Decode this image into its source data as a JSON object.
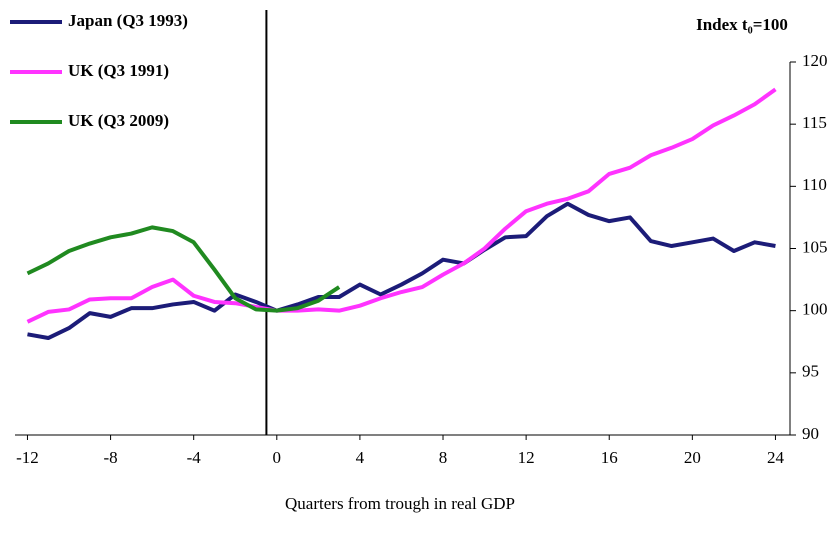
{
  "chart_data": {
    "type": "line",
    "y_label": "Index t₀=100",
    "x_label": "Quarters from trough in real GDP",
    "x": [
      -12,
      -11,
      -10,
      -9,
      -8,
      -7,
      -6,
      -5,
      -4,
      -3,
      -2,
      -1,
      0,
      1,
      2,
      3,
      4,
      5,
      6,
      7,
      8,
      9,
      10,
      11,
      12,
      13,
      14,
      15,
      16,
      17,
      18,
      19,
      20,
      21,
      22,
      23,
      24
    ],
    "series": [
      {
        "name": "Japan (Q3 1993)",
        "color": "#1c1c78",
        "values": [
          98.1,
          97.8,
          98.6,
          99.8,
          99.5,
          100.2,
          100.2,
          100.5,
          100.7,
          100,
          101.3,
          100.7,
          100,
          100.5,
          101.1,
          101.1,
          102.1,
          101.3,
          102.1,
          103,
          104.1,
          103.8,
          104.9,
          105.9,
          106,
          107.6,
          108.6,
          107.7,
          107.2,
          107.5,
          105.6,
          105.2,
          105.5,
          105.8,
          104.8,
          105.5,
          105.2
        ]
      },
      {
        "name": "UK (Q3 1991)",
        "color": "#ff33ff",
        "values": [
          99.1,
          99.9,
          100.1,
          100.9,
          101,
          101,
          101.9,
          102.5,
          101.2,
          100.7,
          100.6,
          100.3,
          100,
          100,
          100.1,
          100,
          100.4,
          101,
          101.5,
          101.9,
          102.9,
          103.8,
          105,
          106.6,
          108,
          108.6,
          109,
          109.6,
          111,
          111.5,
          112.5,
          113.1,
          113.8,
          114.9,
          115.7,
          116.6,
          117.8
        ]
      },
      {
        "name": "UK (Q3 2009)",
        "color": "#208a20",
        "values": [
          103,
          103.8,
          104.8,
          105.4,
          105.9,
          106.2,
          106.7,
          106.4,
          105.5,
          103.3,
          101,
          100.1,
          100,
          100.2,
          100.8,
          101.9,
          null,
          null,
          null,
          null,
          null,
          null,
          null,
          null,
          null,
          null,
          null,
          null,
          null,
          null,
          null,
          null,
          null,
          null,
          null,
          null,
          null
        ]
      }
    ],
    "vline": -0.5,
    "xlim": [
      -12.6,
      24.7
    ],
    "xticks": [
      -12,
      -8,
      -4,
      0,
      4,
      8,
      12,
      16,
      20,
      24
    ],
    "ylim": [
      90,
      120
    ],
    "yticks": [
      90,
      95,
      100,
      105,
      110,
      115,
      120
    ],
    "y_axis_side": "right"
  }
}
